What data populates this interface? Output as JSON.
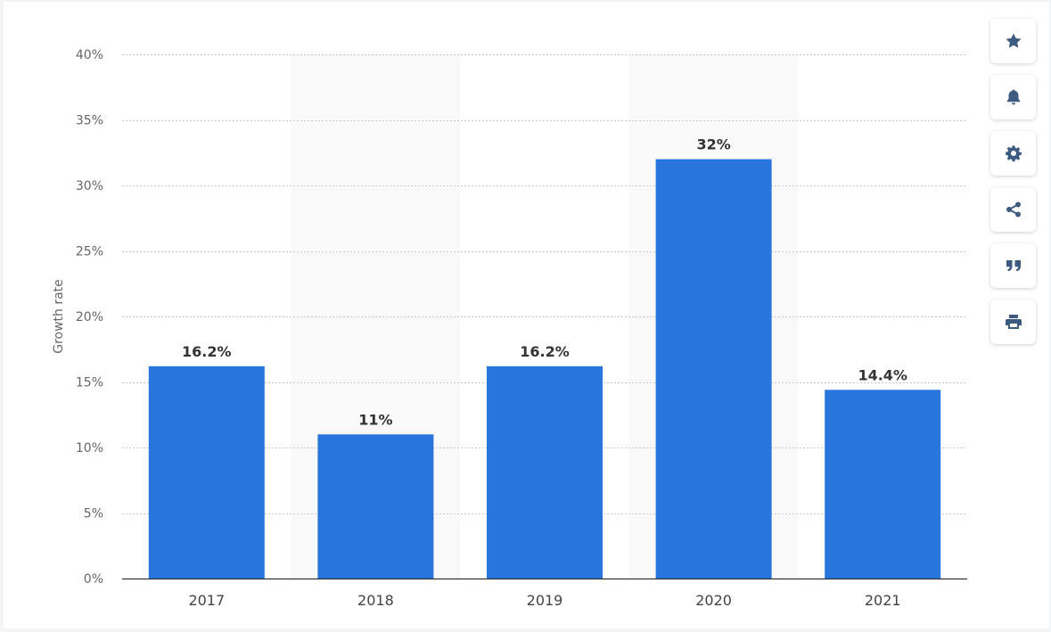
{
  "chart_data": {
    "type": "bar",
    "categories": [
      "2017",
      "2018",
      "2019",
      "2020",
      "2021"
    ],
    "values": [
      16.2,
      11,
      16.2,
      32,
      14.4
    ],
    "data_labels": [
      "16.2%",
      "11%",
      "16.2%",
      "32%",
      "14.4%"
    ],
    "ylabel": "Growth rate",
    "xlabel": "",
    "ylim": [
      0,
      40
    ],
    "y_ticks": [
      0,
      5,
      10,
      15,
      20,
      25,
      30,
      35,
      40
    ],
    "y_tick_labels": [
      "0%",
      "5%",
      "10%",
      "15%",
      "20%",
      "25%",
      "30%",
      "35%",
      "40%"
    ],
    "grid": true,
    "bar_color": "#2876dd",
    "alt_band_color": "#f9f9f9"
  },
  "toolbar": {
    "buttons": [
      {
        "icon": "star-icon"
      },
      {
        "icon": "bell-icon"
      },
      {
        "icon": "gear-icon"
      },
      {
        "icon": "share-icon"
      },
      {
        "icon": "quote-icon"
      },
      {
        "icon": "print-icon"
      }
    ]
  }
}
